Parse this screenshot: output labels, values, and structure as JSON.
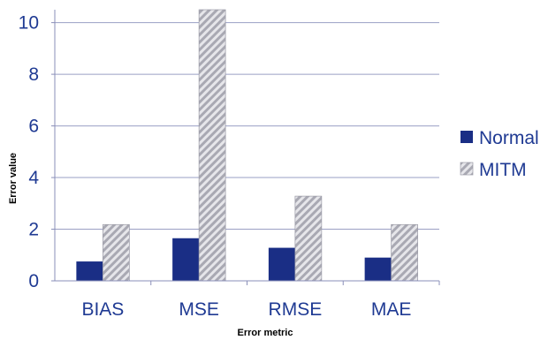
{
  "chart_data": {
    "type": "bar",
    "categories": [
      "BIAS",
      "MSE",
      "RMSE",
      "MAE"
    ],
    "series": [
      {
        "name": "Normal",
        "values": [
          0.75,
          1.65,
          1.28,
          0.9
        ],
        "color": "#1a2e85",
        "pattern": "solid"
      },
      {
        "name": "MITM",
        "values": [
          2.18,
          10.5,
          3.28,
          2.18
        ],
        "color": "#b0b0b8",
        "pattern": "diagonal-hatch"
      }
    ],
    "title": "",
    "xlabel": "Error metric",
    "ylabel": "Error value",
    "ylim": [
      0,
      10.5
    ],
    "yticks": [
      0,
      2,
      4,
      6,
      8,
      10
    ],
    "grid": true,
    "legend_position": "right"
  }
}
